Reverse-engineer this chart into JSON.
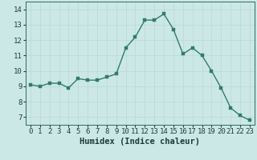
{
  "x": [
    0,
    1,
    2,
    3,
    4,
    5,
    6,
    7,
    8,
    9,
    10,
    11,
    12,
    13,
    14,
    15,
    16,
    17,
    18,
    19,
    20,
    21,
    22,
    23
  ],
  "y": [
    9.1,
    9.0,
    9.2,
    9.2,
    8.9,
    9.5,
    9.4,
    9.4,
    9.6,
    9.8,
    11.5,
    12.2,
    13.3,
    13.3,
    13.7,
    12.7,
    11.1,
    11.5,
    11.0,
    10.0,
    8.9,
    7.6,
    7.1,
    6.8
  ],
  "line_color": "#2e7d6e",
  "marker_color": "#2e7d6e",
  "bg_color": "#cce8e6",
  "grid_color": "#b8d8d6",
  "xlabel": "Humidex (Indice chaleur)",
  "xlim": [
    -0.5,
    23.5
  ],
  "ylim": [
    6.5,
    14.5
  ],
  "yticks": [
    7,
    8,
    9,
    10,
    11,
    12,
    13,
    14
  ],
  "xticks": [
    0,
    1,
    2,
    3,
    4,
    5,
    6,
    7,
    8,
    9,
    10,
    11,
    12,
    13,
    14,
    15,
    16,
    17,
    18,
    19,
    20,
    21,
    22,
    23
  ],
  "xlabel_fontsize": 7.5,
  "tick_fontsize": 6.5,
  "linewidth": 1.0,
  "markersize": 2.5
}
